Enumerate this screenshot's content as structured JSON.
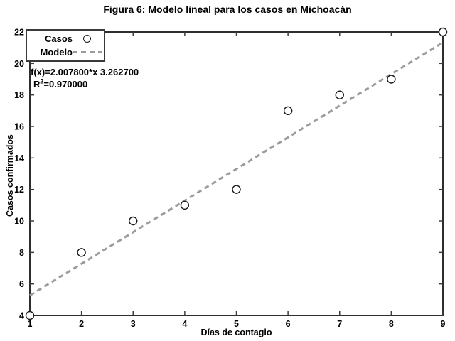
{
  "figure": {
    "title": "Figura 6: Modelo lineal para los casos en Michoacán"
  },
  "annotation": {
    "equation": "f(x)=2.007800*x 3.262700",
    "r2_base": "R",
    "r2_sup": "2",
    "r2_rest": "=0.970000"
  },
  "legend": {
    "position": "top-left",
    "entries": [
      {
        "label": "Casos",
        "marker": "circle"
      },
      {
        "label": "Modelo",
        "marker": "dashed-line"
      }
    ]
  },
  "colors": {
    "axis": "#2e2e2e",
    "tick": "#3d3d3d",
    "marker_stroke": "#1a1a1a",
    "marker_fill": "#ffffff",
    "model_line": "#9c9c9c",
    "text": "#000000",
    "background": "#ffffff"
  },
  "chart_data": {
    "type": "scatter",
    "title": "Figura 6: Modelo lineal para los casos en Michoacán",
    "xlabel": "Días de contagio",
    "ylabel": "Casos confirmados",
    "xlim": [
      1,
      9
    ],
    "ylim": [
      4,
      22
    ],
    "x_ticks": [
      1,
      2,
      3,
      4,
      5,
      6,
      7,
      8,
      9
    ],
    "y_ticks": [
      4,
      6,
      8,
      10,
      12,
      14,
      16,
      18,
      20,
      22
    ],
    "grid": false,
    "legend_position": "top-left",
    "series": [
      {
        "name": "Casos",
        "type": "scatter",
        "marker": "open-circle",
        "x": [
          1,
          2,
          3,
          4,
          5,
          6,
          7,
          8,
          9
        ],
        "y": [
          4,
          8,
          10,
          11,
          12,
          17,
          18,
          19,
          22
        ]
      },
      {
        "name": "Modelo",
        "type": "line",
        "style": "dashed",
        "slope": 2.0078,
        "intercept": 3.2627,
        "x_range": [
          1,
          9
        ],
        "r_squared": 0.97
      }
    ]
  }
}
